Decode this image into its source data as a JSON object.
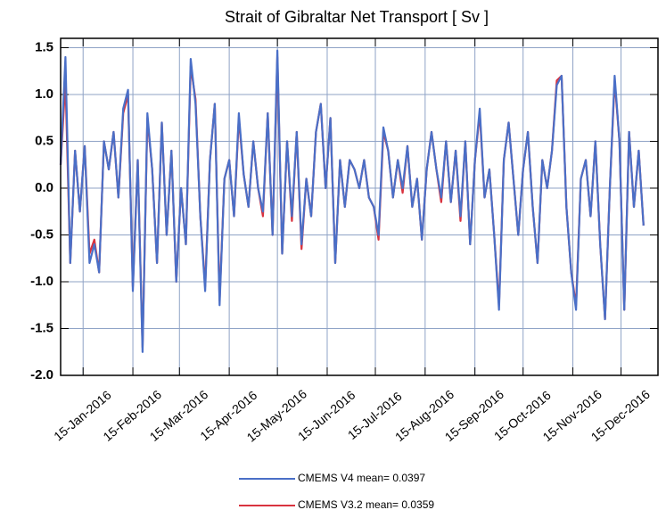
{
  "chart_data": {
    "type": "line",
    "title": "Strait of Gibraltar Net Transport [ Sv ]",
    "x": [
      1,
      4,
      7,
      10,
      13,
      16,
      19,
      22,
      25,
      28,
      31,
      34,
      37,
      40,
      43,
      46,
      49,
      52,
      55,
      58,
      61,
      64,
      67,
      70,
      73,
      76,
      79,
      82,
      85,
      88,
      91,
      94,
      97,
      100,
      103,
      106,
      109,
      112,
      115,
      118,
      121,
      124,
      127,
      130,
      133,
      136,
      139,
      142,
      145,
      148,
      151,
      154,
      157,
      160,
      163,
      166,
      169,
      172,
      175,
      178,
      181,
      184,
      187,
      190,
      193,
      196,
      199,
      202,
      205,
      208,
      211,
      214,
      217,
      220,
      223,
      226,
      229,
      232,
      235,
      238,
      241,
      244,
      247,
      250,
      253,
      256,
      259,
      262,
      265,
      268,
      271,
      274,
      277,
      280,
      283,
      286,
      289,
      292,
      295,
      298,
      301,
      304,
      307,
      310,
      313,
      316,
      319,
      322,
      325,
      328,
      331,
      334,
      337,
      340,
      343,
      346,
      349,
      352,
      355,
      358,
      361,
      364
    ],
    "series": [
      {
        "name": "CMEMS V4 mean= 0.0397",
        "color": "#4a6fc7",
        "values": [
          0.25,
          1.4,
          -0.8,
          0.4,
          -0.25,
          0.45,
          -0.8,
          -0.6,
          -0.9,
          0.5,
          0.2,
          0.6,
          -0.1,
          0.85,
          1.05,
          -1.1,
          0.3,
          -1.75,
          0.8,
          0.2,
          -0.8,
          0.7,
          -0.5,
          0.4,
          -1.0,
          0.0,
          -0.6,
          1.38,
          0.9,
          -0.3,
          -1.1,
          0.3,
          0.9,
          -1.25,
          0.1,
          0.3,
          -0.3,
          0.8,
          0.15,
          -0.2,
          0.5,
          0.0,
          -0.25,
          0.8,
          -0.5,
          1.47,
          -0.7,
          0.5,
          -0.3,
          0.6,
          -0.6,
          0.1,
          -0.3,
          0.6,
          0.9,
          0.0,
          0.75,
          -0.8,
          0.3,
          -0.2,
          0.3,
          0.2,
          0.0,
          0.3,
          -0.1,
          -0.2,
          -0.5,
          0.65,
          0.4,
          -0.1,
          0.3,
          0.0,
          0.45,
          -0.2,
          0.1,
          -0.55,
          0.2,
          0.6,
          0.2,
          -0.1,
          0.5,
          -0.15,
          0.4,
          -0.3,
          0.5,
          -0.6,
          0.3,
          0.85,
          -0.1,
          0.2,
          -0.5,
          -1.3,
          0.3,
          0.7,
          0.1,
          -0.5,
          0.2,
          0.6,
          -0.2,
          -0.8,
          0.3,
          0.0,
          0.4,
          1.1,
          1.2,
          -0.2,
          -0.9,
          -1.3,
          0.1,
          0.3,
          -0.3,
          0.5,
          -0.6,
          -1.4,
          0.0,
          1.2,
          0.5,
          -1.3,
          0.6,
          -0.2,
          0.4,
          -0.4
        ]
      },
      {
        "name": "CMEMS V3.2 mean= 0.0359",
        "color": "#d9333f",
        "values": [
          0.25,
          1.15,
          -0.8,
          0.4,
          -0.25,
          0.45,
          -0.7,
          -0.55,
          -0.9,
          0.5,
          0.2,
          0.6,
          -0.1,
          0.8,
          1.0,
          -1.05,
          0.3,
          -1.7,
          0.75,
          0.2,
          -0.8,
          0.7,
          -0.5,
          0.4,
          -1.0,
          0.0,
          -0.6,
          1.3,
          0.95,
          -0.3,
          -1.05,
          0.3,
          0.9,
          -1.2,
          0.1,
          0.3,
          -0.3,
          0.75,
          0.15,
          -0.2,
          0.5,
          0.0,
          -0.3,
          0.8,
          -0.5,
          1.4,
          -0.7,
          0.5,
          -0.35,
          0.6,
          -0.65,
          0.1,
          -0.3,
          0.6,
          0.9,
          0.0,
          0.75,
          -0.8,
          0.3,
          -0.2,
          0.3,
          0.2,
          0.0,
          0.3,
          -0.1,
          -0.2,
          -0.55,
          0.6,
          0.4,
          -0.1,
          0.3,
          -0.05,
          0.45,
          -0.2,
          0.1,
          -0.55,
          0.2,
          0.6,
          0.2,
          -0.15,
          0.5,
          -0.15,
          0.4,
          -0.35,
          0.5,
          -0.6,
          0.3,
          0.8,
          -0.1,
          0.2,
          -0.5,
          -1.25,
          0.3,
          0.7,
          0.1,
          -0.5,
          0.2,
          0.6,
          -0.2,
          -0.8,
          0.3,
          0.0,
          0.4,
          1.15,
          1.2,
          -0.2,
          -0.9,
          -1.25,
          0.1,
          0.3,
          -0.3,
          0.5,
          -0.6,
          -1.4,
          0.0,
          1.15,
          0.5,
          -1.3,
          0.6,
          -0.2,
          0.4,
          -0.4
        ]
      }
    ],
    "xlim": [
      1,
      373
    ],
    "xticks": [
      {
        "value": 15,
        "label": "15-Jan-2016"
      },
      {
        "value": 46,
        "label": "15-Feb-2016"
      },
      {
        "value": 75,
        "label": "15-Mar-2016"
      },
      {
        "value": 106,
        "label": "15-Apr-2016"
      },
      {
        "value": 136,
        "label": "15-May-2016"
      },
      {
        "value": 167,
        "label": "15-Jun-2016"
      },
      {
        "value": 197,
        "label": "15-Jul-2016"
      },
      {
        "value": 228,
        "label": "15-Aug-2016"
      },
      {
        "value": 259,
        "label": "15-Sep-2016"
      },
      {
        "value": 289,
        "label": "15-Oct-2016"
      },
      {
        "value": 320,
        "label": "15-Nov-2016"
      },
      {
        "value": 350,
        "label": "15-Dec-2016"
      }
    ],
    "ylim": [
      -2.0,
      1.6
    ],
    "yticks": [
      {
        "value": -2,
        "label": "-2.0"
      },
      -1.5,
      {
        "value": -1,
        "label": "-1.0"
      },
      -0.5,
      {
        "value": 0,
        "label": "0.0"
      },
      0.5,
      {
        "value": 1,
        "label": "1.0"
      },
      1.5
    ],
    "grid": true
  }
}
